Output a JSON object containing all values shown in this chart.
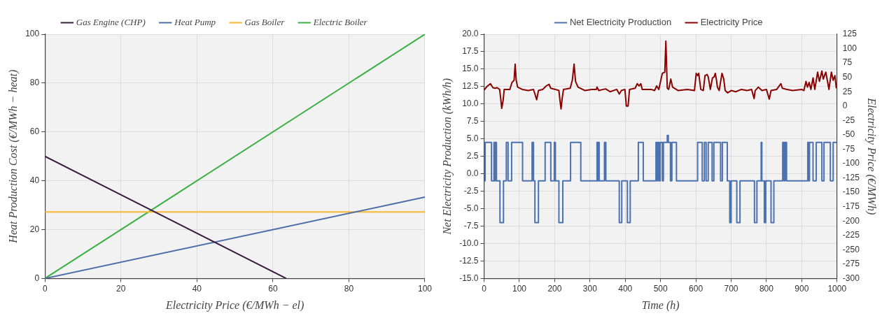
{
  "chart_data": [
    {
      "type": "line",
      "xlabel": "Electricity Price (€/MWh − el)",
      "ylabel": "Heat Production Cost (€/MWh − heat)",
      "xlim": [
        0,
        100
      ],
      "xticks": [
        0,
        20,
        40,
        60,
        80,
        100
      ],
      "ylim": [
        0,
        100
      ],
      "yticks": [
        0,
        20,
        40,
        60,
        80,
        100
      ],
      "grid": true,
      "legend": "top",
      "marker": "none",
      "line_style": "solid",
      "series": [
        {
          "name": "Gas Engine (CHP)",
          "color": "#3b1a3f",
          "x": [
            0,
            63.5
          ],
          "values": [
            50,
            0
          ]
        },
        {
          "name": "Heat Pump",
          "color": "#4c6ea8",
          "x": [
            0,
            100
          ],
          "values": [
            0,
            33.3
          ]
        },
        {
          "name": "Gas Boiler",
          "color": "#f5b82e",
          "x": [
            0,
            100
          ],
          "values": [
            27.2,
            27.2
          ]
        },
        {
          "name": "Electric Boiler",
          "color": "#3cb043",
          "x": [
            0,
            100
          ],
          "values": [
            0,
            100
          ]
        }
      ]
    },
    {
      "type": "line",
      "xlabel": "Time (h)",
      "ylabel": "Net Electricity Production (kWh/h)",
      "y2label": "Electricity Price (€/MWh)",
      "xlim": [
        0,
        1000
      ],
      "xticks": [
        0,
        100,
        200,
        300,
        400,
        500,
        600,
        700,
        800,
        900,
        1000
      ],
      "ylim": [
        -15,
        20
      ],
      "yticks": [
        {
          "value": -15,
          "label": "-15.0"
        },
        {
          "value": -12.5,
          "label": "-12.5"
        },
        {
          "value": -10,
          "label": "-10.0"
        },
        {
          "value": -7.5,
          "label": "-7.5"
        },
        {
          "value": -5,
          "label": "-5.0"
        },
        {
          "value": -2.5,
          "label": "-2.5"
        },
        {
          "value": 0,
          "label": "0.0"
        },
        {
          "value": 2.5,
          "label": "2.5"
        },
        {
          "value": 5,
          "label": "5.0"
        },
        {
          "value": 7.5,
          "label": "7.5"
        },
        {
          "value": 10,
          "label": "10.0"
        },
        {
          "value": 12.5,
          "label": "12.5"
        },
        {
          "value": 15,
          "label": "15.0"
        },
        {
          "value": 17.5,
          "label": "17.5"
        },
        {
          "value": 20,
          "label": "20.0"
        }
      ],
      "y2lim": [
        -300,
        125
      ],
      "y2ticks": [
        -300,
        -275,
        -250,
        -225,
        -200,
        -175,
        -150,
        -125,
        -100,
        -75,
        -50,
        -25,
        0,
        25,
        50,
        75,
        100,
        125
      ],
      "grid": true,
      "legend": "top",
      "marker": "none",
      "line_style": "solid",
      "series": [
        {
          "name": "Net Electricity Production",
          "type": "step",
          "color": "#4c72b0",
          "x": [
            0,
            3,
            21,
            28,
            30,
            32,
            35,
            45,
            55,
            63,
            68,
            78,
            109,
            136,
            140,
            144,
            154,
            173,
            189,
            199,
            202,
            212,
            223,
            245,
            274,
            320,
            322,
            324,
            326,
            341,
            345,
            383,
            390,
            406,
            414,
            437,
            451,
            487,
            490,
            492,
            496,
            499,
            505,
            508,
            519,
            522,
            528,
            532,
            545,
            605,
            618,
            624,
            629,
            635,
            646,
            651,
            670,
            675,
            689,
            696,
            700,
            716,
            725,
            766,
            773,
            785,
            787,
            794,
            798,
            813,
            821,
            846,
            850,
            853,
            857,
            917,
            920,
            922,
            932,
            941,
            957,
            963,
            981,
            989,
            1000
          ],
          "values": [
            -1,
            4.5,
            -1,
            4.5,
            -1,
            4.5,
            -1,
            -7,
            -1,
            4.5,
            -1,
            4.5,
            -1,
            4.5,
            -1,
            -7,
            -1,
            4.5,
            -1,
            4.5,
            -1,
            -7,
            -1,
            4.5,
            -1,
            4.5,
            -1,
            4.5,
            -1,
            4.5,
            -1,
            -7,
            -1,
            -7,
            -1,
            4.5,
            -1,
            4.5,
            -1,
            4.5,
            -1,
            4.5,
            -1,
            4.5,
            5.5,
            4.5,
            -1,
            4.5,
            -1,
            4.5,
            -1,
            4.5,
            -1,
            4.5,
            -1,
            4.5,
            -1,
            4.5,
            -1,
            -7,
            -1,
            -7,
            -1,
            -7,
            -1,
            4.5,
            -1,
            -7,
            -1,
            -7,
            -1,
            4.5,
            -1,
            4.5,
            -1,
            4.5,
            -1,
            4.5,
            -1,
            4.5,
            -1,
            4.5,
            -1,
            4.5,
            4.5
          ]
        },
        {
          "name": "Electricity Price",
          "type": "line",
          "axis": "y2",
          "color": "#8b0000",
          "x": [
            0,
            8,
            18,
            25,
            31,
            37,
            44,
            47,
            50,
            54,
            57,
            73,
            79,
            85,
            88,
            91,
            95,
            108,
            125,
            140,
            145,
            149,
            154,
            166,
            176,
            184,
            189,
            202,
            212,
            215,
            218,
            221,
            225,
            244,
            250,
            255,
            259,
            266,
            286,
            305,
            318,
            320,
            325,
            344,
            357,
            376,
            383,
            389,
            399,
            403,
            408,
            412,
            428,
            434,
            439,
            444,
            448,
            473,
            483,
            489,
            495,
            505,
            512,
            515,
            519,
            523,
            529,
            534,
            550,
            576,
            596,
            601,
            605,
            608,
            614,
            621,
            626,
            632,
            635,
            641,
            647,
            652,
            655,
            658,
            661,
            666,
            674,
            679,
            683,
            690,
            700,
            713,
            729,
            745,
            758,
            765,
            768,
            777,
            787,
            800,
            808,
            813,
            829,
            841,
            845,
            858,
            874,
            900,
            906,
            912,
            916,
            921,
            926,
            932,
            937,
            945,
            950,
            957,
            961,
            968,
            973,
            977,
            984,
            989,
            994,
            998
          ],
          "values": [
            28,
            34,
            39,
            32,
            31,
            32,
            29,
            14,
            -4,
            10,
            29,
            29,
            41,
            45,
            73,
            45,
            33,
            29,
            27,
            29,
            19,
            11,
            27,
            29,
            35,
            38,
            31,
            29,
            27,
            10,
            -5,
            12,
            29,
            31,
            45,
            73,
            43,
            33,
            27,
            29,
            29,
            33,
            27,
            30,
            25,
            29,
            21,
            27,
            29,
            0,
            0,
            29,
            31,
            39,
            35,
            39,
            29,
            29,
            27,
            35,
            29,
            57,
            59,
            113,
            31,
            29,
            47,
            33,
            27,
            29,
            27,
            57,
            53,
            57,
            29,
            27,
            53,
            55,
            51,
            29,
            49,
            51,
            57,
            47,
            33,
            27,
            57,
            47,
            27,
            23,
            27,
            25,
            29,
            27,
            29,
            13,
            27,
            33,
            27,
            29,
            12,
            27,
            29,
            39,
            31,
            29,
            27,
            29,
            27,
            43,
            33,
            41,
            29,
            49,
            29,
            59,
            43,
            61,
            47,
            59,
            43,
            29,
            59,
            45,
            53,
            31
          ]
        }
      ]
    }
  ]
}
